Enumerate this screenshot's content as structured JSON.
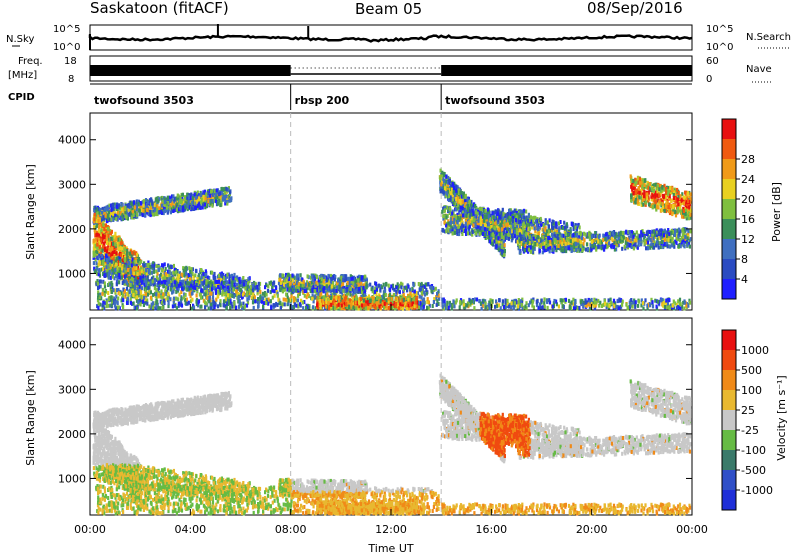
{
  "header": {
    "station": "Saskatoon (fitACF)",
    "beam": "Beam 05",
    "date": "08/Sep/2016"
  },
  "strips": {
    "nsky_label": "N.Sky",
    "nsky_ticks": [
      "10^5",
      "10^0"
    ],
    "nsearch_label": "N.Search",
    "nsearch_ticks": [
      "10^5",
      "10^0"
    ],
    "freq_label_1": "Freq.",
    "freq_label_2": "[MHz]",
    "freq_ticks": [
      "18",
      "8"
    ],
    "nave_label": "Nave",
    "nave_ticks": [
      "60",
      "0"
    ],
    "cpid_label": "CPID"
  },
  "cpid_segments": [
    {
      "name": "twofsound 3503",
      "start_hour": 0,
      "end_hour": 8
    },
    {
      "name": "rbsp 200",
      "start_hour": 8,
      "end_hour": 14
    },
    {
      "name": "twofsound 3503",
      "start_hour": 14,
      "end_hour": 24
    }
  ],
  "colors": {
    "power": [
      "#1f1fff",
      "#2a4bc2",
      "#3f6fc0",
      "#3b8f5a",
      "#7fbf3f",
      "#e8d020",
      "#f09a18",
      "#f05a10",
      "#e81010"
    ],
    "velocity": [
      "#1f2fd8",
      "#3050c8",
      "#3a7a6a",
      "#66bb44",
      "#c8c8c8",
      "#e8b830",
      "#f08a18",
      "#f04a10",
      "#e81010"
    ]
  },
  "chart_data": [
    {
      "type": "heatmap",
      "panel": "power",
      "xlabel": "",
      "ylabel": "Slant Range [km]",
      "x_range_hours": [
        0,
        24
      ],
      "ylim": [
        180,
        4600
      ],
      "y_ticks": [
        1000,
        2000,
        3000,
        4000
      ],
      "colorbar_label": "Power [dB]",
      "colorbar_ticks": [
        "4",
        "8",
        "12",
        "16",
        "20",
        "24",
        "28"
      ]
    },
    {
      "type": "heatmap",
      "panel": "velocity",
      "xlabel": "Time UT",
      "ylabel": "Slant Range [km]",
      "x_range_hours": [
        0,
        24
      ],
      "x_ticks": [
        "00:00",
        "04:00",
        "08:00",
        "12:00",
        "16:00",
        "20:00",
        "00:00"
      ],
      "ylim": [
        180,
        4600
      ],
      "y_ticks": [
        1000,
        2000,
        3000,
        4000
      ],
      "colorbar_label": "Velocity [m s⁻¹]",
      "colorbar_ticks": [
        "1000",
        "500",
        "100",
        "25",
        "-25",
        "-100",
        "-500",
        "-1000"
      ]
    }
  ]
}
